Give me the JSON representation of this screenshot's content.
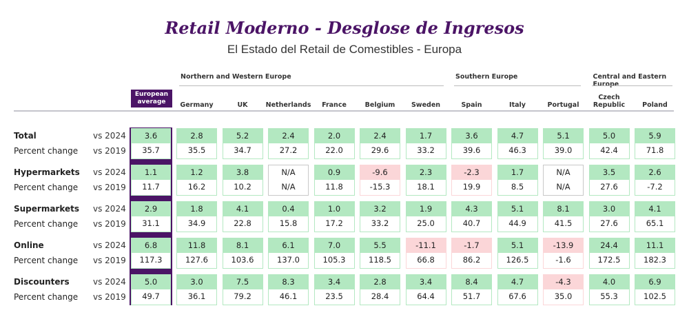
{
  "title": "Retail Moderno - Desglose de Ingresos",
  "subtitle": "El Estado del Retail de Comestibles - Europa",
  "colors": {
    "accent": "#4b1466",
    "positive": "#b3e8c1",
    "negative": "#fbd6d8",
    "na_border": "#c8c8c8"
  },
  "chart_data": {
    "type": "table",
    "regions": [
      {
        "name": "Northern and Western Europe",
        "columns": [
          "Germany",
          "UK",
          "Netherlands",
          "France",
          "Belgium",
          "Sweden"
        ]
      },
      {
        "name": "Southern Europe",
        "columns": [
          "Spain",
          "Italy",
          "Portugal"
        ]
      },
      {
        "name": "Central and Eastern Europe",
        "columns": [
          "Czech Republic",
          "Poland"
        ]
      }
    ],
    "average_label": "European average",
    "columns": [
      "European average",
      "Germany",
      "UK",
      "Netherlands",
      "France",
      "Belgium",
      "Sweden",
      "Spain",
      "Italy",
      "Portugal",
      "Czech Republic",
      "Poland"
    ],
    "row_sublabel": "Percent change",
    "compare_labels": [
      "vs 2024",
      "vs 2019"
    ],
    "rows": [
      {
        "category": "Total",
        "vs2024": [
          "3.6",
          "2.8",
          "5.2",
          "2.4",
          "2.0",
          "2.4",
          "1.7",
          "3.6",
          "4.7",
          "5.1",
          "5.0",
          "5.9"
        ],
        "vs2019": [
          "35.7",
          "35.5",
          "34.7",
          "27.2",
          "22.0",
          "29.6",
          "33.2",
          "39.6",
          "46.3",
          "39.0",
          "42.4",
          "71.8"
        ]
      },
      {
        "category": "Hypermarkets",
        "vs2024": [
          "1.1",
          "1.2",
          "3.8",
          "N/A",
          "0.9",
          "-9.6",
          "2.3",
          "-2.3",
          "1.7",
          "N/A",
          "3.5",
          "2.6"
        ],
        "vs2019": [
          "11.7",
          "16.2",
          "10.2",
          "N/A",
          "11.8",
          "-15.3",
          "18.1",
          "19.9",
          "8.5",
          "N/A",
          "27.6",
          "-7.2"
        ]
      },
      {
        "category": "Supermarkets",
        "vs2024": [
          "2.9",
          "1.8",
          "4.1",
          "0.4",
          "1.0",
          "3.2",
          "1.9",
          "4.3",
          "5.1",
          "8.1",
          "3.0",
          "4.1"
        ],
        "vs2019": [
          "31.1",
          "34.9",
          "22.8",
          "15.8",
          "17.2",
          "33.2",
          "25.0",
          "40.7",
          "44.9",
          "41.5",
          "27.6",
          "65.1"
        ]
      },
      {
        "category": "Online",
        "vs2024": [
          "6.8",
          "11.8",
          "8.1",
          "6.1",
          "7.0",
          "5.5",
          "-11.1",
          "-1.7",
          "5.1",
          "-13.9",
          "24.4",
          "11.1"
        ],
        "vs2019": [
          "117.3",
          "127.6",
          "103.6",
          "137.0",
          "105.3",
          "118.5",
          "66.8",
          "86.2",
          "126.5",
          "-1.6",
          "172.5",
          "182.3"
        ]
      },
      {
        "category": "Discounters",
        "vs2024": [
          "5.0",
          "3.0",
          "7.5",
          "8.3",
          "3.4",
          "2.8",
          "3.4",
          "8.4",
          "4.7",
          "-4.3",
          "4.0",
          "6.9"
        ],
        "vs2019": [
          "49.7",
          "36.1",
          "79.2",
          "46.1",
          "23.5",
          "28.4",
          "64.4",
          "51.7",
          "67.6",
          "35.0",
          "55.3",
          "102.5"
        ]
      }
    ]
  }
}
